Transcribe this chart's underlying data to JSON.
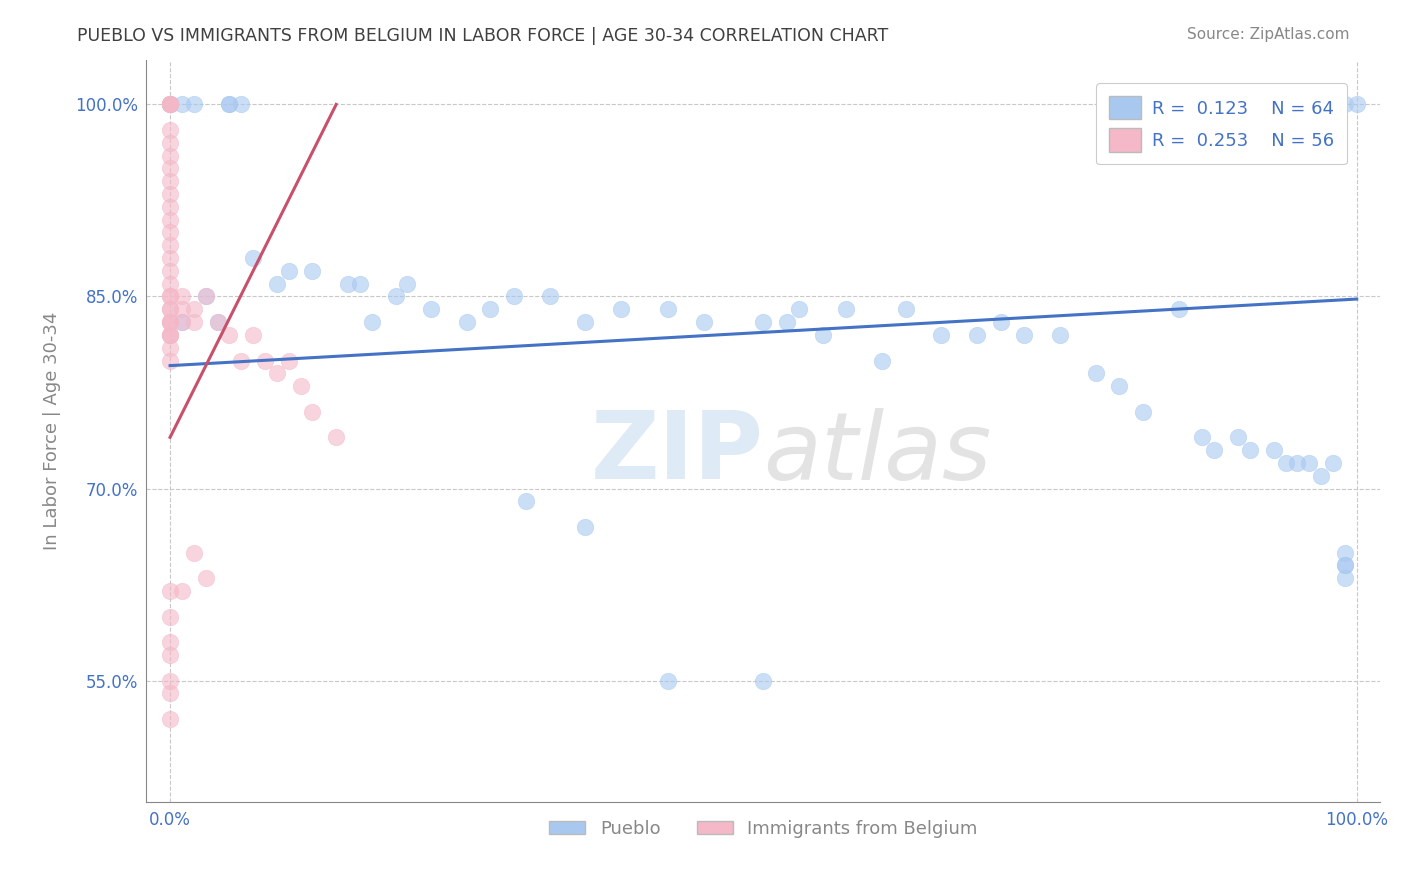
{
  "title": "PUEBLO VS IMMIGRANTS FROM BELGIUM IN LABOR FORCE | AGE 30-34 CORRELATION CHART",
  "source": "Source: ZipAtlas.com",
  "ylabel": "In Labor Force | Age 30-34",
  "xlabel": "",
  "watermark": "ZIPatlas",
  "legend_blue": {
    "R": "0.123",
    "N": "64",
    "label": "Pueblo"
  },
  "legend_pink": {
    "R": "0.253",
    "N": "56",
    "label": "Immigrants from Belgium"
  },
  "xlim": [
    -0.02,
    1.02
  ],
  "ylim": [
    0.455,
    1.035
  ],
  "yticks": [
    0.55,
    0.7,
    0.85,
    1.0
  ],
  "ytick_labels": [
    "55.0%",
    "70.0%",
    "85.0%",
    "100.0%"
  ],
  "xtick_labels": [
    "0.0%",
    "100.0%"
  ],
  "xticks": [
    0.0,
    1.0
  ],
  "blue_scatter_x": [
    0.0,
    0.0,
    0.01,
    0.01,
    0.02,
    0.03,
    0.04,
    0.05,
    0.05,
    0.06,
    0.07,
    0.09,
    0.1,
    0.12,
    0.15,
    0.16,
    0.17,
    0.19,
    0.2,
    0.22,
    0.25,
    0.27,
    0.29,
    0.32,
    0.35,
    0.38,
    0.42,
    0.45,
    0.5,
    0.52,
    0.53,
    0.55,
    0.57,
    0.6,
    0.62,
    0.65,
    0.68,
    0.7,
    0.72,
    0.75,
    0.78,
    0.8,
    0.82,
    0.85,
    0.87,
    0.88,
    0.9,
    0.91,
    0.93,
    0.94,
    0.95,
    0.96,
    0.97,
    0.98,
    0.99,
    0.99,
    0.99,
    0.99,
    0.99,
    1.0,
    0.3,
    0.35,
    0.42,
    0.5
  ],
  "blue_scatter_y": [
    1.0,
    1.0,
    1.0,
    0.83,
    1.0,
    0.85,
    0.83,
    1.0,
    1.0,
    1.0,
    0.88,
    0.86,
    0.87,
    0.87,
    0.86,
    0.86,
    0.83,
    0.85,
    0.86,
    0.84,
    0.83,
    0.84,
    0.85,
    0.85,
    0.83,
    0.84,
    0.84,
    0.83,
    0.83,
    0.83,
    0.84,
    0.82,
    0.84,
    0.8,
    0.84,
    0.82,
    0.82,
    0.83,
    0.82,
    0.82,
    0.79,
    0.78,
    0.76,
    0.84,
    0.74,
    0.73,
    0.74,
    0.73,
    0.73,
    0.72,
    0.72,
    0.72,
    0.71,
    0.72,
    0.65,
    0.64,
    0.64,
    0.63,
    1.0,
    1.0,
    0.69,
    0.67,
    0.55,
    0.55
  ],
  "pink_scatter_x": [
    0.0,
    0.0,
    0.0,
    0.0,
    0.0,
    0.0,
    0.0,
    0.0,
    0.0,
    0.0,
    0.0,
    0.0,
    0.0,
    0.0,
    0.0,
    0.0,
    0.0,
    0.0,
    0.0,
    0.0,
    0.0,
    0.0,
    0.0,
    0.0,
    0.0,
    0.0,
    0.0,
    0.0,
    0.0,
    0.0,
    0.01,
    0.01,
    0.01,
    0.02,
    0.02,
    0.03,
    0.04,
    0.05,
    0.06,
    0.07,
    0.08,
    0.09,
    0.1,
    0.11,
    0.12,
    0.14,
    0.02,
    0.03,
    0.01,
    0.0,
    0.0,
    0.0,
    0.0,
    0.0,
    0.0,
    0.0
  ],
  "pink_scatter_y": [
    1.0,
    1.0,
    1.0,
    1.0,
    1.0,
    0.98,
    0.97,
    0.96,
    0.95,
    0.94,
    0.93,
    0.92,
    0.91,
    0.9,
    0.89,
    0.88,
    0.87,
    0.86,
    0.85,
    0.85,
    0.84,
    0.83,
    0.82,
    0.81,
    0.8,
    0.83,
    0.82,
    0.84,
    0.83,
    0.82,
    0.85,
    0.84,
    0.83,
    0.84,
    0.83,
    0.85,
    0.83,
    0.82,
    0.8,
    0.82,
    0.8,
    0.79,
    0.8,
    0.78,
    0.76,
    0.74,
    0.65,
    0.63,
    0.62,
    0.62,
    0.6,
    0.58,
    0.57,
    0.55,
    0.54,
    0.52
  ],
  "blue_line_x": [
    0.0,
    1.0
  ],
  "blue_line_y": [
    0.796,
    0.848
  ],
  "pink_line_x": [
    0.0,
    0.14
  ],
  "pink_line_y": [
    0.74,
    1.0
  ],
  "blue_color": "#a8c8f0",
  "pink_color": "#f4b8c8",
  "blue_line_color": "#4472c4",
  "pink_line_color": "#c8506a",
  "title_color": "#404040",
  "source_color": "#888888",
  "background_color": "#ffffff",
  "grid_color": "#c8c8c8",
  "watermark_color": "#d8e8f8",
  "axis_color": "#888888"
}
